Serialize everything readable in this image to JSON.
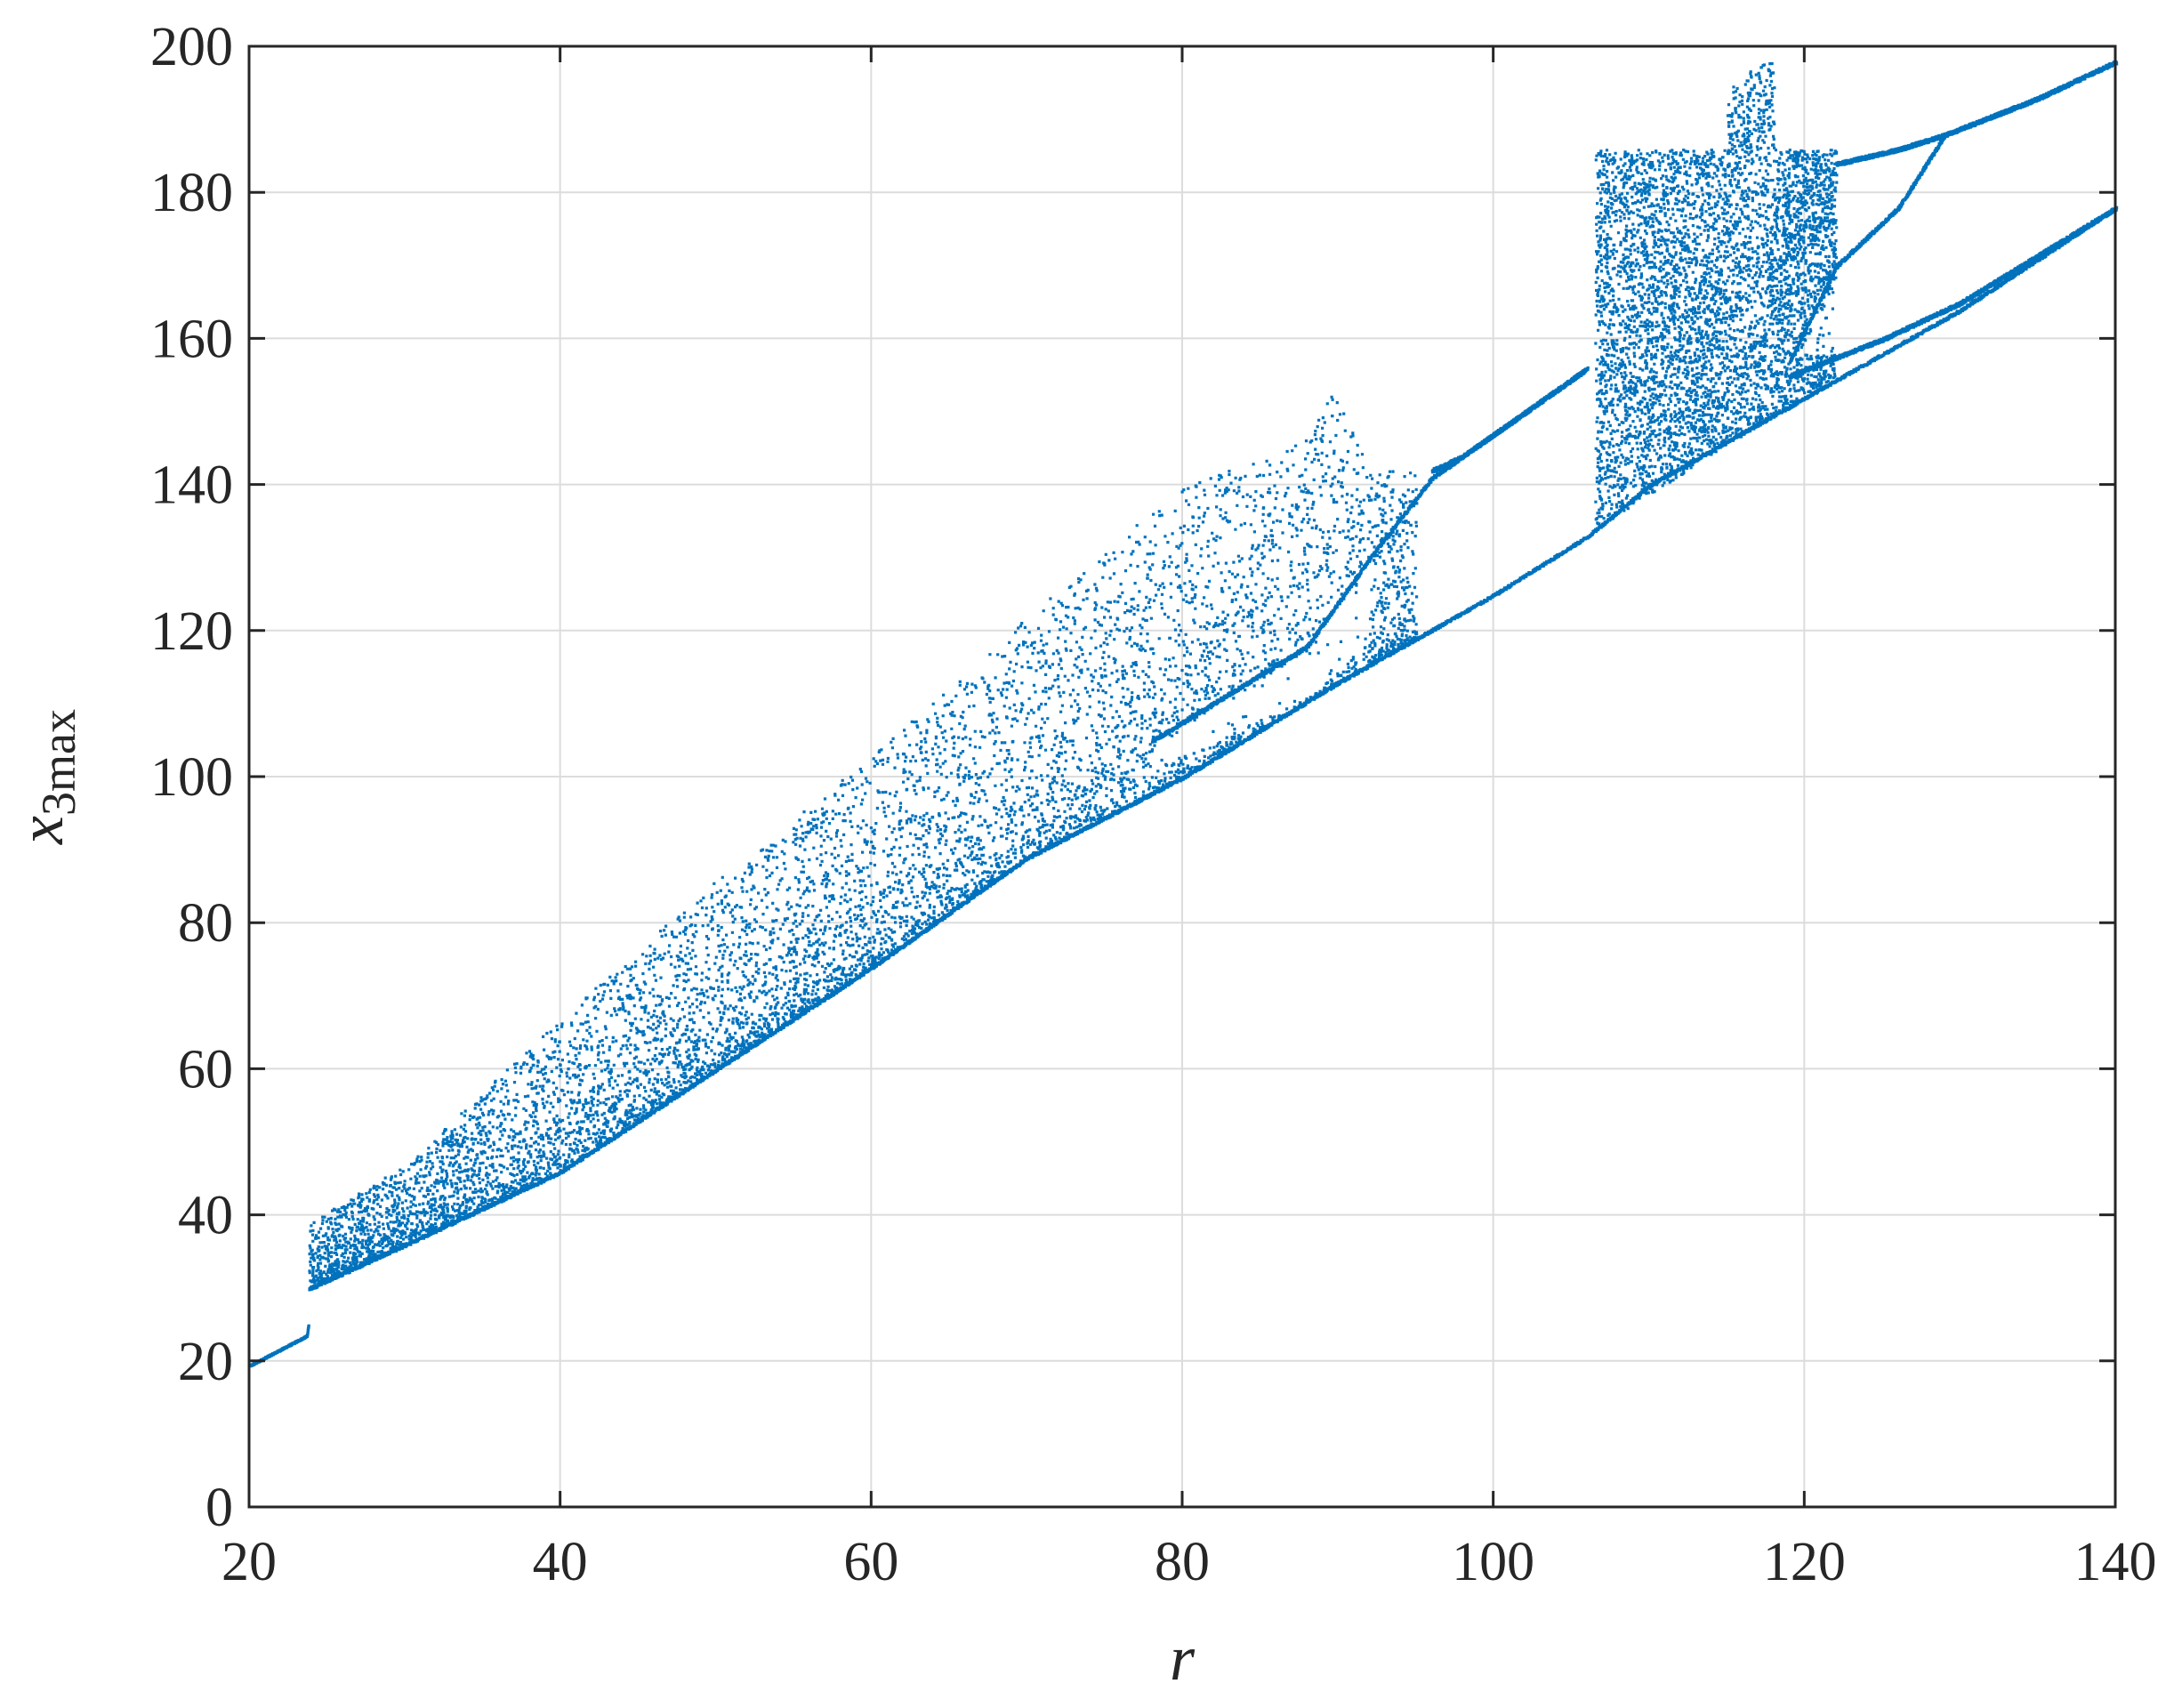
{
  "chart_data": {
    "type": "scatter",
    "title": "",
    "xlabel": "r",
    "ylabel": {
      "main": "x",
      "sub": "3max"
    },
    "xlim": [
      20,
      140
    ],
    "ylim": [
      0,
      200
    ],
    "xticks": [
      "20",
      "40",
      "60",
      "80",
      "100",
      "120",
      "140"
    ],
    "yticks": [
      "0",
      "20",
      "40",
      "60",
      "80",
      "100",
      "120",
      "140",
      "160",
      "180",
      "200"
    ],
    "grid": true,
    "legend": "none",
    "marker_color": "#0072BD",
    "series": [
      {
        "name": "",
        "description_points": [
          [
            20,
            19.5
          ],
          [
            23.7,
            23.5
          ],
          [
            23.8,
            30
          ],
          [
            23.8,
            38
          ],
          [
            30,
            36
          ],
          [
            30,
            47
          ],
          [
            40,
            46
          ],
          [
            40,
            67
          ],
          [
            50,
            60
          ],
          [
            50,
            86
          ],
          [
            60,
            74
          ],
          [
            60,
            102
          ],
          [
            63,
            80
          ],
          [
            63,
            100
          ],
          [
            70,
            90
          ],
          [
            70,
            120
          ],
          [
            78,
            98
          ],
          [
            78,
            130
          ],
          [
            85,
            106
          ],
          [
            85,
            145
          ],
          [
            88,
            109
          ],
          [
            88,
            132
          ],
          [
            90,
            112
          ],
          [
            90,
            154
          ],
          [
            92,
            120
          ],
          [
            92,
            140
          ],
          [
            95,
            141
          ],
          [
            98,
            143
          ],
          [
            100,
            147
          ],
          [
            105,
            156
          ],
          [
            107,
            135
          ],
          [
            107,
            187
          ],
          [
            110,
            139
          ],
          [
            110,
            190
          ],
          [
            115,
            147
          ],
          [
            117,
            200
          ],
          [
            120,
            155
          ],
          [
            120,
            185
          ],
          [
            125,
            180
          ],
          [
            129,
            188
          ],
          [
            140,
            198
          ],
          [
            140,
            178
          ]
        ]
      }
    ],
    "structure": {
      "branch_start": [
        20,
        19.5
      ],
      "branch_jump": [
        23.8,
        30
      ],
      "upper_limit": [
        [
          23.8,
          39
        ],
        [
          30,
          47
        ],
        [
          40,
          67
        ],
        [
          50,
          86
        ],
        [
          60,
          103
        ],
        [
          70,
          122
        ],
        [
          80,
          140
        ],
        [
          87,
          145
        ],
        [
          90,
          154
        ],
        [
          92,
          142
        ],
        [
          95,
          142
        ]
      ],
      "lower_limit": [
        [
          23.8,
          30
        ],
        [
          30,
          36
        ],
        [
          40,
          46
        ],
        [
          50,
          60
        ],
        [
          60,
          74
        ],
        [
          70,
          89
        ],
        [
          80,
          100
        ],
        [
          90,
          113
        ],
        [
          100,
          125
        ],
        [
          106,
          133
        ],
        [
          110,
          140
        ],
        [
          120,
          152
        ],
        [
          130,
          164
        ],
        [
          140,
          178
        ]
      ],
      "window_period_upper": [
        [
          78,
          105
        ],
        [
          88,
          118
        ],
        [
          92,
          130
        ],
        [
          96,
          141
        ],
        [
          100,
          147
        ],
        [
          106,
          156
        ]
      ],
      "window_period_top": [
        [
          96,
          142
        ],
        [
          98,
          144
        ],
        [
          102,
          150
        ],
        [
          106,
          156
        ]
      ],
      "chaos_band_2": {
        "x": [
          106.5,
          122
        ],
        "ymin": [
          134,
          155
        ],
        "ymax": [
          186,
          186
        ]
      },
      "top_branch": [
        [
          122,
          184
        ],
        [
          126,
          186
        ],
        [
          129,
          188
        ],
        [
          135,
          193
        ],
        [
          140,
          198
        ]
      ],
      "mid_branch": [
        [
          119,
          157
        ],
        [
          122,
          170
        ],
        [
          126,
          178
        ],
        [
          129,
          188
        ]
      ],
      "lower_branch": [
        [
          119,
          155
        ],
        [
          125,
          160
        ],
        [
          130,
          165
        ],
        [
          140,
          178
        ]
      ]
    }
  }
}
